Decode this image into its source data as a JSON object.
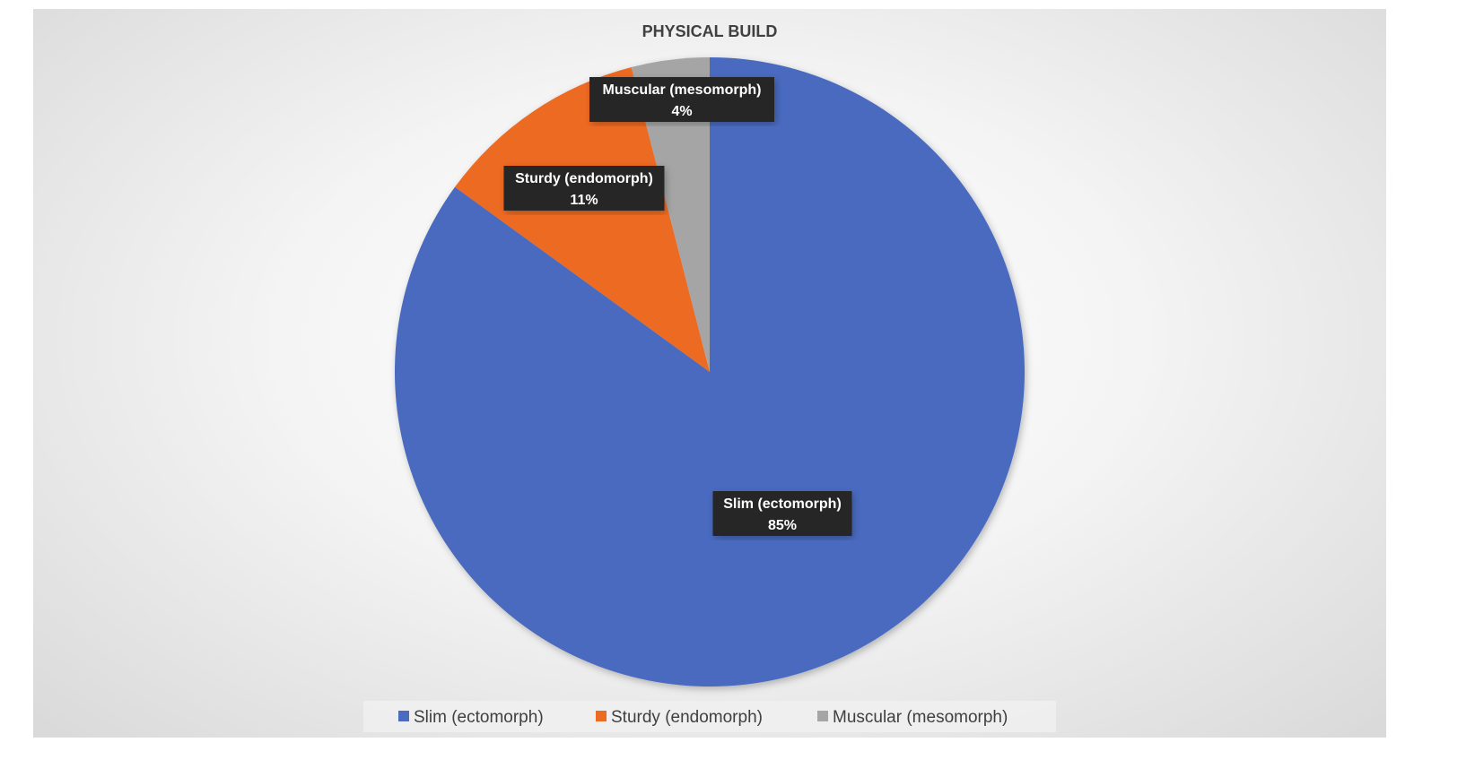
{
  "chart_data": {
    "type": "pie",
    "title": "PHYSICAL BUILD",
    "categories": [
      "Slim (ectomorph)",
      "Sturdy (endomorph)",
      "Muscular (mesomorph)"
    ],
    "values": [
      85,
      11,
      4
    ],
    "data_labels": [
      "85%",
      "11%",
      "4%"
    ],
    "colors": [
      "#4a6bbf",
      "#ed6b21",
      "#a5a5a5"
    ],
    "start_angle": "12 o'clock, clockwise",
    "legend_position": "bottom"
  }
}
